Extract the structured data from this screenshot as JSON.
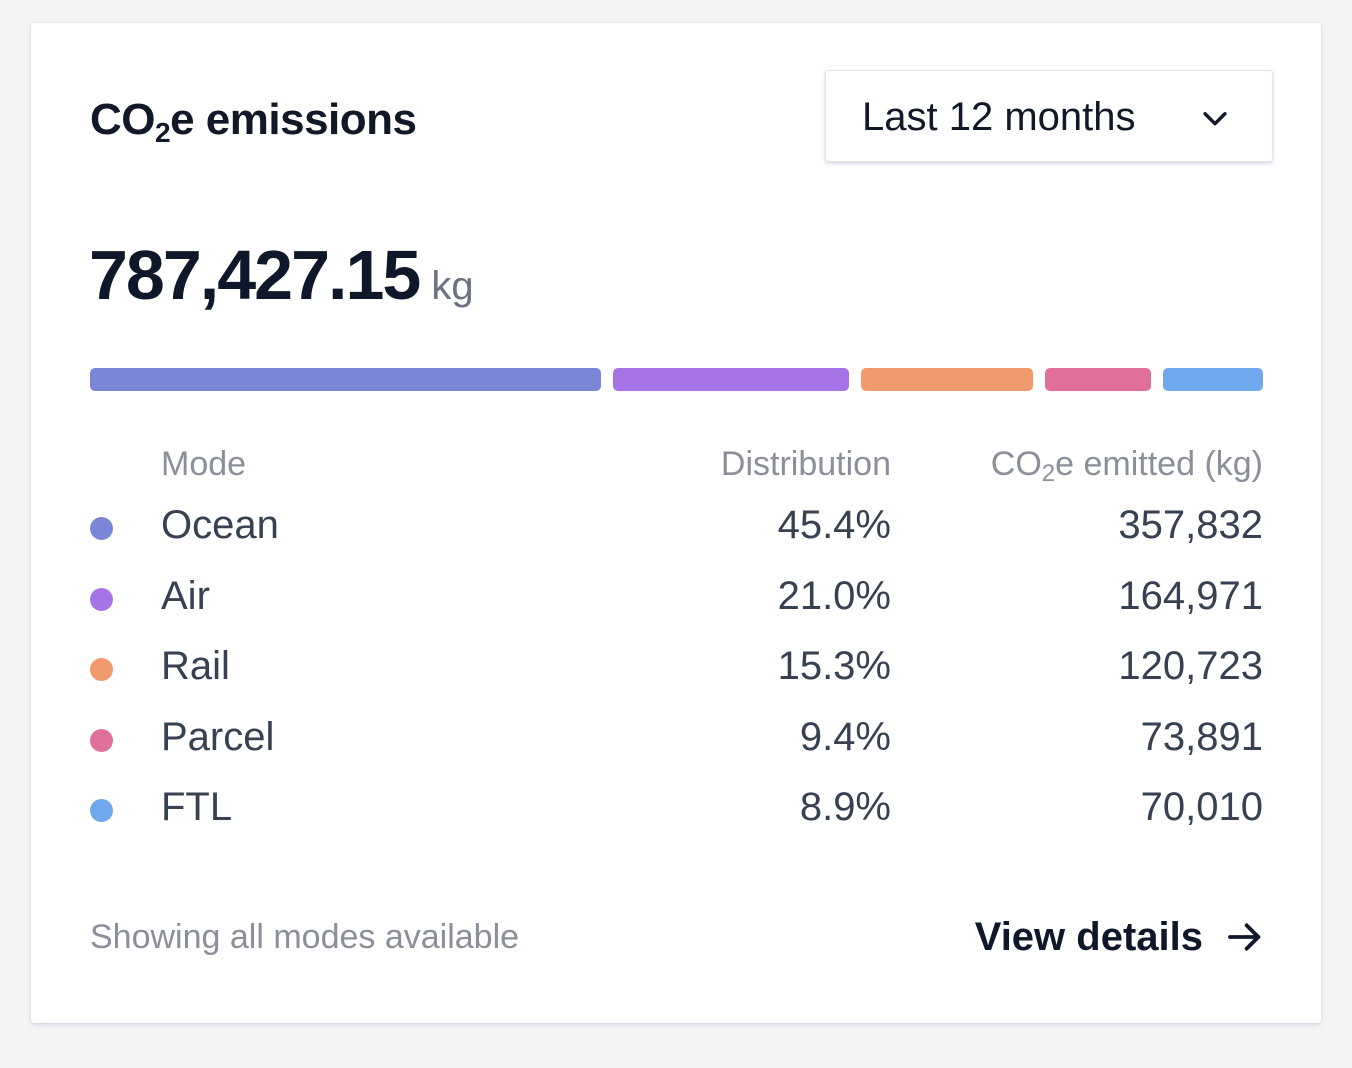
{
  "header": {
    "title_prefix": "CO",
    "title_sub": "2",
    "title_suffix": "e emissions",
    "period_selector": {
      "selected": "Last 12 months",
      "icon": "chevron-down-icon"
    }
  },
  "summary": {
    "total_value": "787,427.15",
    "total_unit": "kg"
  },
  "table": {
    "columns": {
      "mode": "Mode",
      "distribution": "Distribution",
      "co2_prefix": "CO",
      "co2_sub": "2",
      "co2_suffix": "e emitted (kg)"
    },
    "rows": [
      {
        "mode": "Ocean",
        "distribution": "45.4%",
        "co2": "357,832",
        "color": "#7b86d6",
        "share": 45.4
      },
      {
        "mode": "Air",
        "distribution": "21.0%",
        "co2": "164,971",
        "color": "#a774e8",
        "share": 21.0
      },
      {
        "mode": "Rail",
        "distribution": "15.3%",
        "co2": "120,723",
        "color": "#f09a6e",
        "share": 15.3
      },
      {
        "mode": "Parcel",
        "distribution": "9.4%",
        "co2": "73,891",
        "color": "#e0709b",
        "share": 9.4
      },
      {
        "mode": "FTL",
        "distribution": "8.9%",
        "co2": "70,010",
        "color": "#6fa8ec",
        "share": 8.9
      }
    ]
  },
  "footer": {
    "note": "Showing all modes available",
    "link_label": "View details",
    "link_icon": "arrow-right-icon"
  }
}
